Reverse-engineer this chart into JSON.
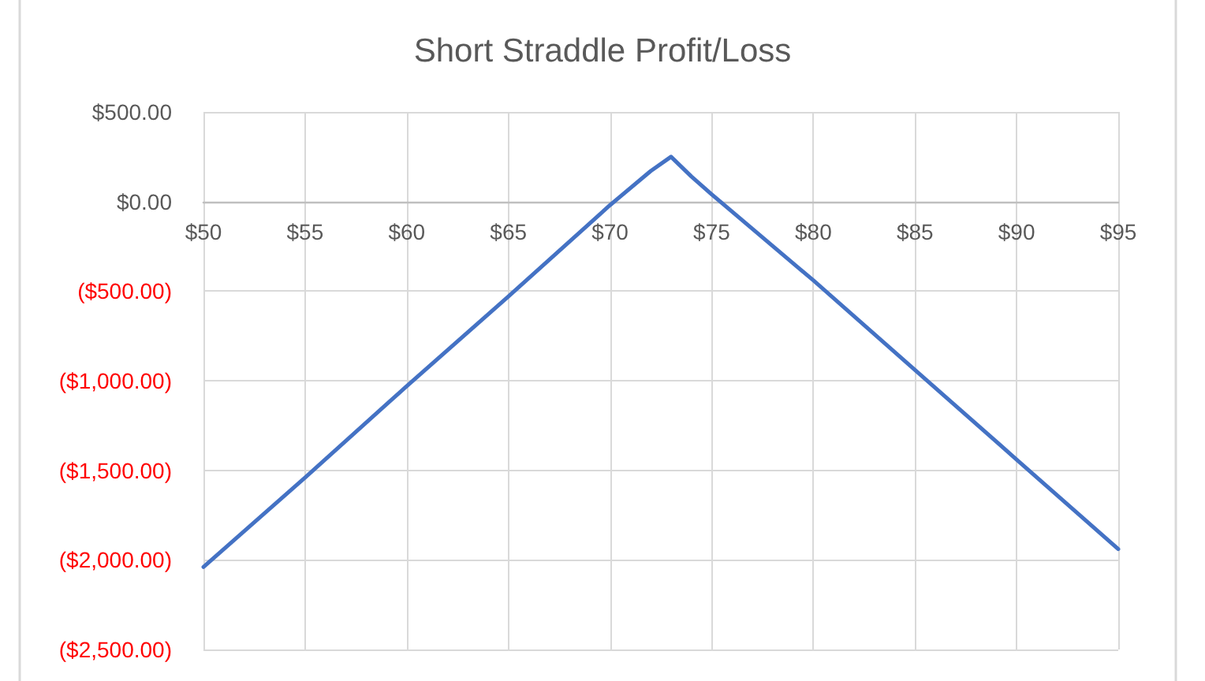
{
  "chart_data": {
    "type": "line",
    "title": "Short Straddle Profit/Loss",
    "x": [
      50,
      55,
      60,
      65,
      70,
      72,
      73,
      74,
      75,
      80,
      85,
      90,
      95
    ],
    "series": [
      {
        "color": "#4472c4",
        "values": [
          -2040,
          -1540,
          -1030,
          -530,
          -20,
          170,
          250,
          140,
          40,
          -440,
          -940,
          -1440,
          -1940
        ]
      }
    ],
    "xlim": [
      50,
      95
    ],
    "xticks": [
      {
        "value": 50,
        "label": "$50"
      },
      {
        "value": 55,
        "label": "$55"
      },
      {
        "value": 60,
        "label": "$60"
      },
      {
        "value": 65,
        "label": "$65"
      },
      {
        "value": 70,
        "label": "$70"
      },
      {
        "value": 75,
        "label": "$75"
      },
      {
        "value": 80,
        "label": "$80"
      },
      {
        "value": 85,
        "label": "$85"
      },
      {
        "value": 90,
        "label": "$90"
      },
      {
        "value": 95,
        "label": "$95"
      }
    ],
    "ylim": [
      -2500,
      500
    ],
    "yticks": [
      {
        "value": 500,
        "label": "$500.00"
      },
      {
        "value": 0,
        "label": "$0.00"
      },
      {
        "value": -500,
        "label": "($500.00)"
      },
      {
        "value": -1000,
        "label": "($1,000.00)"
      },
      {
        "value": -1500,
        "label": "($1,500.00)"
      },
      {
        "value": -2000,
        "label": "($2,000.00)"
      },
      {
        "value": -2500,
        "label": "($2,500.00)"
      }
    ],
    "grid": true,
    "marker": "none",
    "line_style": "solid"
  }
}
